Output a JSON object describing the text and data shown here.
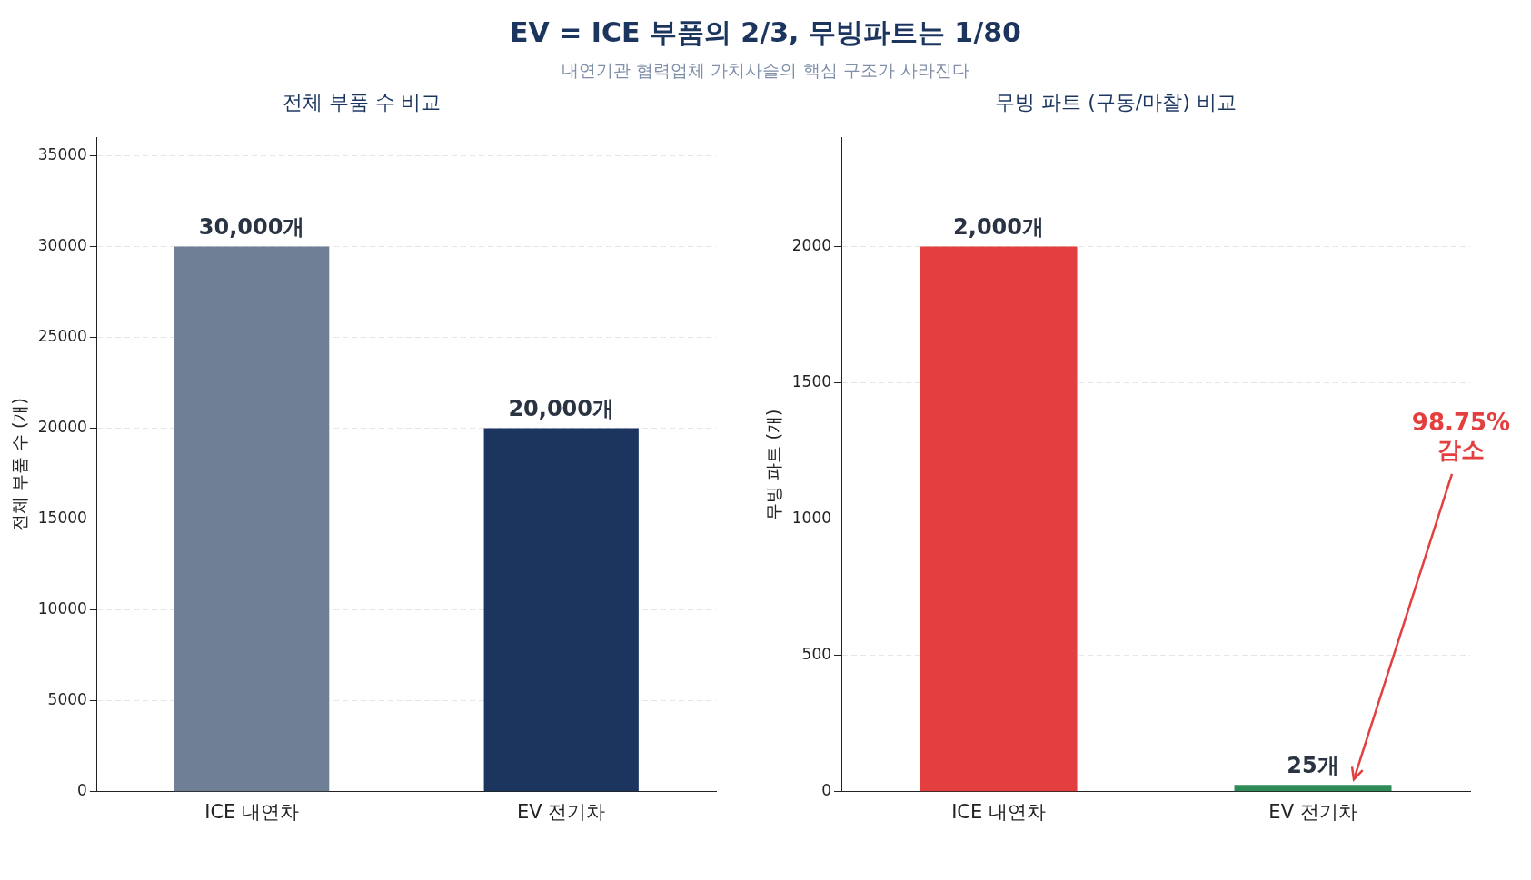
{
  "chart_data": [
    {
      "type": "other",
      "title": "EV = ICE 부품의 2/3, 무빙파트는 1/80",
      "subtitle": "내연기관 협력업체 가치사슬의 핵심 구조가 사라진다"
    },
    {
      "type": "bar",
      "title": "전체 부품 수 비교",
      "ylabel": "전체 부품 수 (개)",
      "categories": [
        "ICE 내연차",
        "EV 전기차"
      ],
      "values": [
        30000,
        20000
      ],
      "colors": [
        "#6f7f96",
        "#1c355e"
      ],
      "value_labels": [
        "30,000개",
        "20,000개"
      ],
      "ylim": [
        0,
        36000
      ],
      "yticks": [
        0,
        5000,
        10000,
        15000,
        20000,
        25000,
        30000,
        35000
      ],
      "grid": "y",
      "legend": false
    },
    {
      "type": "bar",
      "title": "무빙 파트 (구동/마찰) 비교",
      "ylabel": "무빙 파트 (개)",
      "categories": [
        "ICE 내연차",
        "EV 전기차"
      ],
      "values": [
        2000,
        25
      ],
      "colors": [
        "#e43f3f",
        "#2e8b57"
      ],
      "value_labels": [
        "2,000개",
        "25개"
      ],
      "ylim": [
        0,
        2400
      ],
      "yticks": [
        0,
        500,
        1000,
        1500,
        2000
      ],
      "grid": "y",
      "legend": false,
      "annotations": [
        "98.75%\n감소"
      ]
    }
  ]
}
